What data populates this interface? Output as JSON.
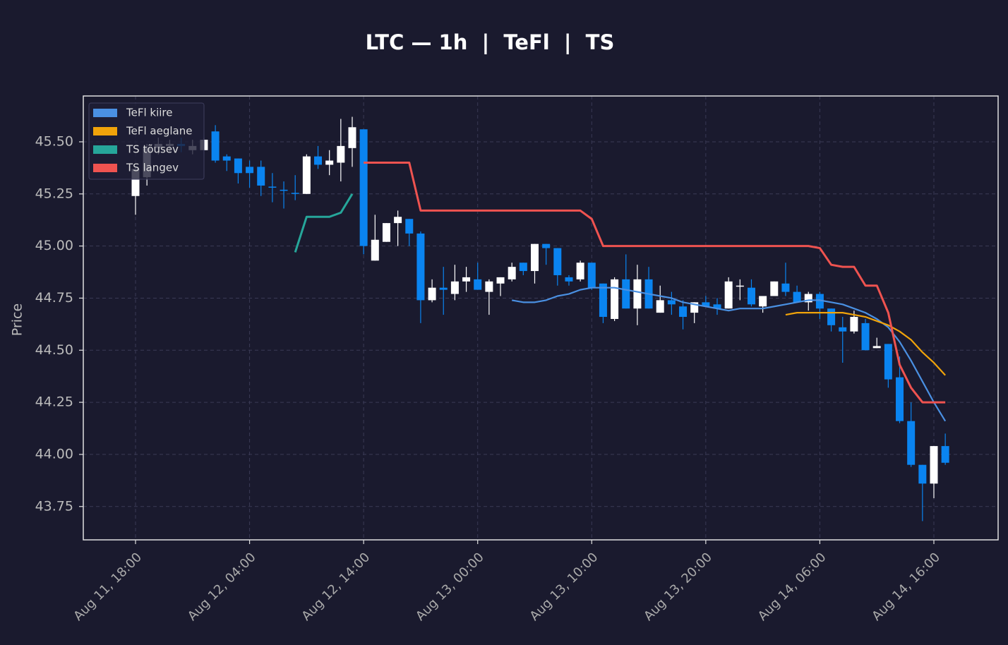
{
  "chart_data": {
    "type": "candlestick",
    "title": "LTC — 1h  |  TeFl  |  TS",
    "y_label": "Price",
    "x": [
      "Aug 11, 18:00",
      null,
      null,
      null,
      null,
      null,
      null,
      null,
      null,
      null,
      "Aug 12, 04:00",
      null,
      null,
      null,
      null,
      null,
      null,
      null,
      null,
      null,
      "Aug 12, 14:00",
      null,
      null,
      null,
      null,
      null,
      null,
      null,
      null,
      null,
      "Aug 13, 00:00",
      null,
      null,
      null,
      null,
      null,
      null,
      null,
      null,
      null,
      "Aug 13, 10:00",
      null,
      null,
      null,
      null,
      null,
      null,
      null,
      null,
      null,
      "Aug 13, 20:00",
      null,
      null,
      null,
      null,
      null,
      null,
      null,
      null,
      null,
      "Aug 14, 06:00",
      null,
      null,
      null,
      null,
      null,
      null,
      null,
      null,
      null,
      "Aug 14, 16:00",
      null
    ],
    "open": [
      45.24,
      45.33,
      45.47,
      45.48,
      45.49,
      45.46,
      45.46,
      45.55,
      45.43,
      45.42,
      45.38,
      45.38,
      45.285,
      45.27,
      45.255,
      45.25,
      45.43,
      45.39,
      45.4,
      45.47,
      45.56,
      44.93,
      45.02,
      45.11,
      45.13,
      45.06,
      44.74,
      44.8,
      44.77,
      44.83,
      44.84,
      44.78,
      44.82,
      44.84,
      44.92,
      44.88,
      45.01,
      44.99,
      44.85,
      44.84,
      44.92,
      44.82,
      44.65,
      44.84,
      44.7,
      44.84,
      44.68,
      44.74,
      44.71,
      44.68,
      44.73,
      44.72,
      44.7,
      44.805,
      44.8,
      44.71,
      44.76,
      44.82,
      44.78,
      44.73,
      44.77,
      44.7,
      44.61,
      44.59,
      44.63,
      44.51,
      44.53,
      44.37,
      44.16,
      43.95,
      43.86,
      44.04
    ],
    "high": [
      45.38,
      45.49,
      45.52,
      45.51,
      45.52,
      45.51,
      45.52,
      45.58,
      45.44,
      45.42,
      45.41,
      45.41,
      45.35,
      45.31,
      45.34,
      45.44,
      45.48,
      45.46,
      45.61,
      45.62,
      45.56,
      45.15,
      45.11,
      45.17,
      45.13,
      45.07,
      44.84,
      44.9,
      44.91,
      44.9,
      44.92,
      44.84,
      44.85,
      44.92,
      44.92,
      45.01,
      45.01,
      44.99,
      44.86,
      44.93,
      44.92,
      44.82,
      44.85,
      44.96,
      44.91,
      44.9,
      44.81,
      44.78,
      44.74,
      44.73,
      44.76,
      44.75,
      44.85,
      44.84,
      44.84,
      44.76,
      44.83,
      44.92,
      44.81,
      44.78,
      44.78,
      44.7,
      44.66,
      44.69,
      44.65,
      44.56,
      44.53,
      44.47,
      44.25,
      43.95,
      44.04,
      44.1
    ],
    "low": [
      45.15,
      45.29,
      45.44,
      45.45,
      45.45,
      45.44,
      45.46,
      45.4,
      45.36,
      45.3,
      45.28,
      45.24,
      45.21,
      45.18,
      45.22,
      45.25,
      45.37,
      45.34,
      45.31,
      45.38,
      44.96,
      44.93,
      45.02,
      45.0,
      45.0,
      44.63,
      44.73,
      44.67,
      44.74,
      44.78,
      44.79,
      44.67,
      44.76,
      44.83,
      44.86,
      44.82,
      44.91,
      44.81,
      44.81,
      44.83,
      44.79,
      44.63,
      44.64,
      44.7,
      44.62,
      44.7,
      44.68,
      44.67,
      44.6,
      44.63,
      44.71,
      44.67,
      44.7,
      44.74,
      44.71,
      44.68,
      44.76,
      44.76,
      44.73,
      44.69,
      44.65,
      44.59,
      44.44,
      44.58,
      44.5,
      44.51,
      44.32,
      44.15,
      43.94,
      43.68,
      43.79,
      43.95
    ],
    "close": [
      45.37,
      45.47,
      45.49,
      45.49,
      45.48,
      45.48,
      45.51,
      45.41,
      45.41,
      45.35,
      45.35,
      45.29,
      45.28,
      45.265,
      45.25,
      45.43,
      45.39,
      45.41,
      45.48,
      45.57,
      45.0,
      45.03,
      45.11,
      45.14,
      45.06,
      44.74,
      44.8,
      44.79,
      44.83,
      44.85,
      44.79,
      44.83,
      44.85,
      44.9,
      44.88,
      45.01,
      44.99,
      44.86,
      44.83,
      44.92,
      44.8,
      44.66,
      44.84,
      44.7,
      44.84,
      44.7,
      44.74,
      44.72,
      44.66,
      44.73,
      44.71,
      44.7,
      44.83,
      44.81,
      44.72,
      44.76,
      44.83,
      44.78,
      44.73,
      44.77,
      44.7,
      44.62,
      44.59,
      44.66,
      44.5,
      44.52,
      44.36,
      44.16,
      43.95,
      43.86,
      44.04,
      43.96
    ],
    "up_color": "#ffffff",
    "down_color": "#0a84f0",
    "series": [
      {
        "name": "TeFl kiire",
        "color": "#4a90e2",
        "values": [
          null,
          null,
          null,
          null,
          null,
          null,
          null,
          null,
          null,
          null,
          null,
          null,
          null,
          null,
          null,
          null,
          null,
          null,
          null,
          null,
          null,
          null,
          null,
          null,
          null,
          null,
          null,
          null,
          null,
          null,
          null,
          null,
          null,
          44.74,
          44.73,
          44.73,
          44.74,
          44.76,
          44.77,
          44.79,
          44.8,
          44.8,
          44.8,
          44.79,
          44.78,
          44.77,
          44.76,
          44.75,
          44.73,
          44.72,
          44.71,
          44.7,
          44.69,
          44.7,
          44.7,
          44.7,
          44.71,
          44.72,
          44.73,
          44.74,
          44.74,
          44.73,
          44.72,
          44.7,
          44.68,
          44.65,
          44.61,
          44.54,
          44.45,
          44.35,
          44.25,
          44.16
        ]
      },
      {
        "name": "TeFl aeglane",
        "color": "#f0a30a",
        "values": [
          null,
          null,
          null,
          null,
          null,
          null,
          null,
          null,
          null,
          null,
          null,
          null,
          null,
          null,
          null,
          null,
          null,
          null,
          null,
          null,
          null,
          null,
          null,
          null,
          null,
          null,
          null,
          null,
          null,
          null,
          null,
          null,
          null,
          null,
          null,
          null,
          null,
          null,
          null,
          null,
          null,
          null,
          null,
          null,
          null,
          null,
          null,
          null,
          null,
          null,
          null,
          null,
          null,
          null,
          null,
          null,
          null,
          44.67,
          44.68,
          44.68,
          44.68,
          44.68,
          44.68,
          44.67,
          44.66,
          44.64,
          44.62,
          44.59,
          44.55,
          44.49,
          44.44,
          44.38
        ]
      },
      {
        "name": "TS tõusev",
        "color": "#26a69a",
        "values": [
          null,
          null,
          null,
          null,
          null,
          null,
          null,
          null,
          null,
          null,
          null,
          null,
          null,
          null,
          44.97,
          45.14,
          45.14,
          45.14,
          45.16,
          45.25,
          null,
          null,
          null,
          null,
          null,
          null,
          null,
          null,
          null,
          null,
          null,
          null,
          null,
          null,
          null,
          null,
          null,
          null,
          null,
          null,
          null,
          null,
          null,
          null,
          null,
          null,
          null,
          null,
          null,
          null,
          null,
          null,
          null,
          null,
          null,
          null,
          null,
          null,
          null,
          null,
          null,
          null,
          null,
          null,
          null,
          null,
          null,
          null,
          null,
          null,
          null,
          null
        ]
      },
      {
        "name": "TS langev",
        "color": "#ef5350",
        "values": [
          null,
          null,
          null,
          null,
          null,
          null,
          null,
          null,
          null,
          null,
          null,
          null,
          null,
          null,
          null,
          null,
          null,
          null,
          null,
          null,
          45.4,
          45.4,
          45.4,
          45.4,
          45.4,
          45.17,
          45.17,
          45.17,
          45.17,
          45.17,
          45.17,
          45.17,
          45.17,
          45.17,
          45.17,
          45.17,
          45.17,
          45.17,
          45.17,
          45.17,
          45.13,
          45.0,
          45.0,
          45.0,
          45.0,
          45.0,
          45.0,
          45.0,
          45.0,
          45.0,
          45.0,
          45.0,
          45.0,
          45.0,
          45.0,
          45.0,
          45.0,
          45.0,
          45.0,
          45.0,
          44.99,
          44.91,
          44.9,
          44.9,
          44.81,
          44.81,
          44.68,
          44.43,
          44.32,
          44.25,
          44.25,
          44.25
        ]
      }
    ],
    "ylim": [
      43.59,
      45.72
    ],
    "yticks": [
      43.75,
      {
        "value": 44.0,
        "label": "44.00"
      },
      44.25,
      {
        "value": 44.5,
        "label": "44.50"
      },
      44.75,
      {
        "value": 45.0,
        "label": "45.00"
      },
      45.25,
      {
        "value": 45.5,
        "label": "45.50"
      }
    ],
    "grid": true,
    "legend": "upper left"
  }
}
